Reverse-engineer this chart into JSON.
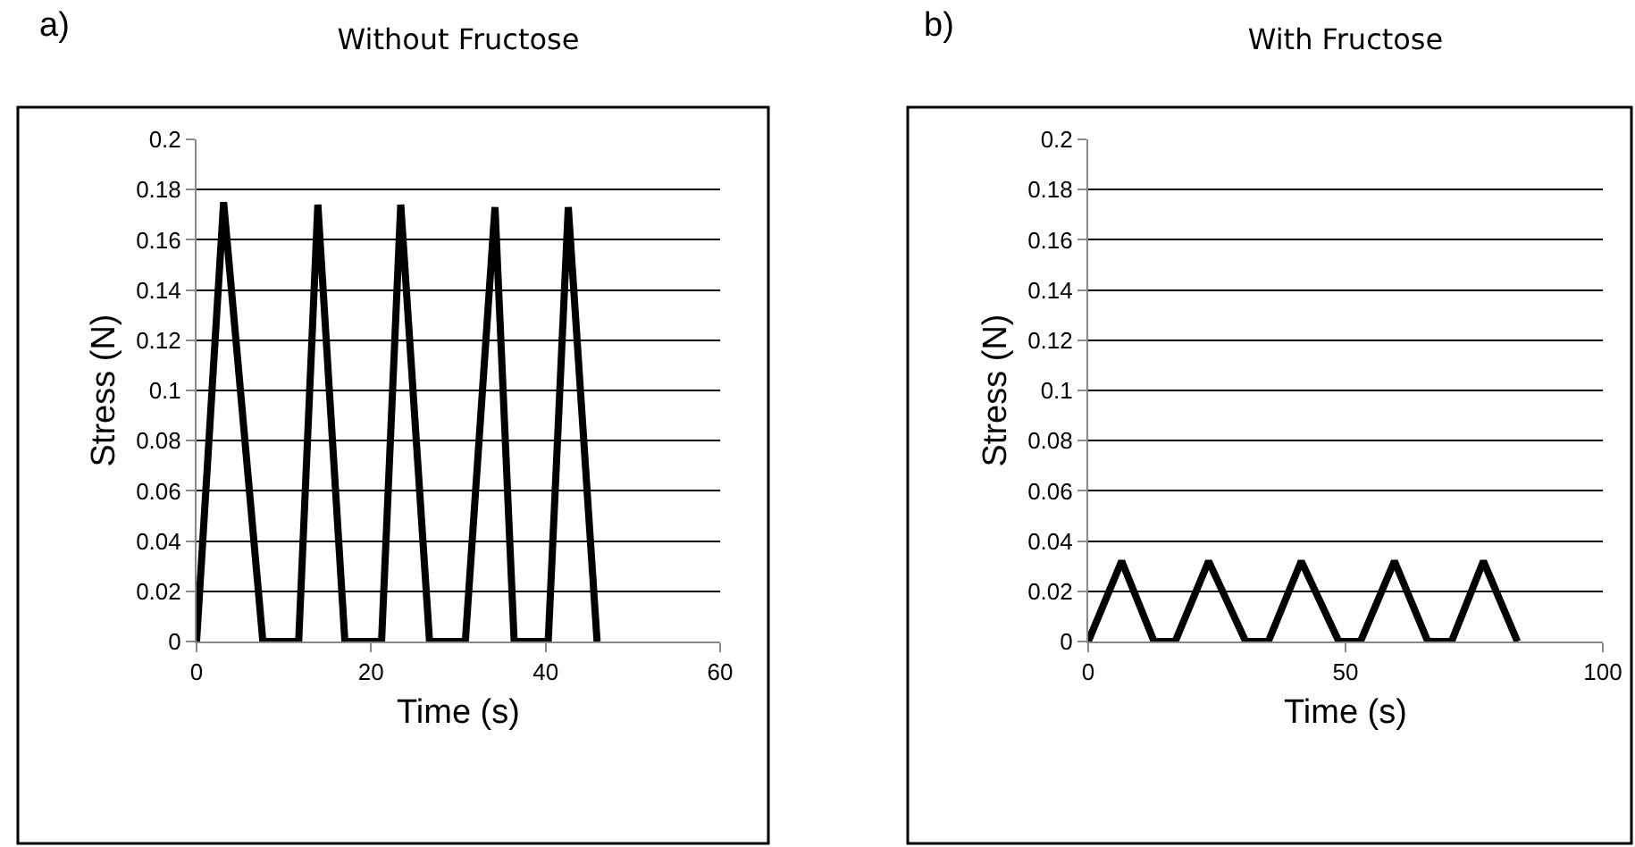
{
  "chart_data": [
    {
      "type": "line",
      "title": "Without Fructose",
      "xlabel": "Time (s)",
      "ylabel": "Stress (N)",
      "annotations": [
        "a)"
      ],
      "x": [
        0,
        3.1,
        7.6,
        11.7,
        13.9,
        17.0,
        21.2,
        23.4,
        26.7,
        30.8,
        34.2,
        36.4,
        40.3,
        42.6,
        45.9
      ],
      "values": [
        0,
        0.175,
        0,
        0,
        0.174,
        0,
        0,
        0.174,
        0,
        0,
        0.173,
        0,
        0,
        0.173,
        0
      ],
      "color": "#000000",
      "xlim": [
        0,
        60
      ],
      "ylim": [
        0,
        0.2
      ],
      "xticks": [
        0,
        20,
        40,
        60
      ],
      "yticks": [
        0,
        0.02,
        0.04,
        0.06,
        0.08,
        0.1,
        0.12,
        0.14,
        0.16,
        0.18,
        0.2
      ],
      "grid": "y"
    },
    {
      "type": "line",
      "title": "With Fructose",
      "xlabel": "Time (s)",
      "ylabel": "Stress (N)",
      "annotations": [
        "b)"
      ],
      "x": [
        0,
        6.5,
        12.8,
        16.9,
        23.4,
        30.6,
        35.0,
        41.4,
        48.7,
        52.9,
        59.5,
        66.0,
        70.6,
        76.8,
        83.4
      ],
      "values": [
        0,
        0.032,
        0,
        0,
        0.032,
        0,
        0,
        0.032,
        0,
        0,
        0.032,
        0,
        0,
        0.032,
        0
      ],
      "color": "#000000",
      "xlim": [
        0,
        100
      ],
      "ylim": [
        0,
        0.2
      ],
      "xticks": [
        0,
        50,
        100
      ],
      "yticks": [
        0,
        0.02,
        0.04,
        0.06,
        0.08,
        0.1,
        0.12,
        0.14,
        0.16,
        0.18,
        0.2
      ],
      "grid": "y"
    }
  ]
}
